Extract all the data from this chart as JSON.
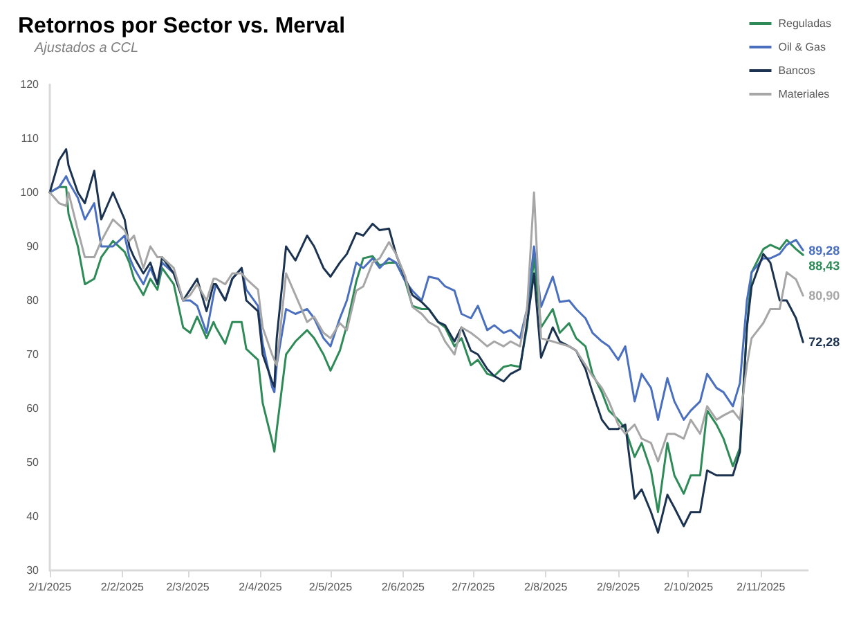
{
  "chart_data": {
    "type": "line",
    "title": "Retornos por Sector vs. Merval",
    "subtitle": "Ajustados a CCL",
    "x": [
      "2025-01-02",
      "2025-01-06",
      "2025-01-09",
      "2025-01-10",
      "2025-01-14",
      "2025-01-17",
      "2025-01-21",
      "2025-01-24",
      "2025-01-29",
      "2025-02-03",
      "2025-02-05",
      "2025-02-07",
      "2025-02-11",
      "2025-02-14",
      "2025-02-17",
      "2025-02-19",
      "2025-02-24",
      "2025-02-28",
      "2025-03-03",
      "2025-03-06",
      "2025-03-10",
      "2025-03-13",
      "2025-03-14",
      "2025-03-18",
      "2025-03-21",
      "2025-03-25",
      "2025-03-27",
      "2025-04-01",
      "2025-04-03",
      "2025-04-07",
      "2025-04-08",
      "2025-04-09",
      "2025-04-13",
      "2025-04-17",
      "2025-04-22",
      "2025-04-25",
      "2025-04-29",
      "2025-05-02",
      "2025-05-06",
      "2025-05-09",
      "2025-05-13",
      "2025-05-16",
      "2025-05-20",
      "2025-05-23",
      "2025-05-27",
      "2025-05-30",
      "2025-06-03",
      "2025-06-06",
      "2025-06-10",
      "2025-06-13",
      "2025-06-17",
      "2025-06-20",
      "2025-06-24",
      "2025-06-27",
      "2025-07-01",
      "2025-07-04",
      "2025-07-08",
      "2025-07-11",
      "2025-07-15",
      "2025-07-18",
      "2025-07-22",
      "2025-07-25",
      "2025-07-28",
      "2025-07-31",
      "2025-08-05",
      "2025-08-08",
      "2025-08-12",
      "2025-08-15",
      "2025-08-19",
      "2025-08-22",
      "2025-08-26",
      "2025-08-29",
      "2025-09-02",
      "2025-09-05",
      "2025-09-09",
      "2025-09-12",
      "2025-09-16",
      "2025-09-19",
      "2025-09-23",
      "2025-09-26",
      "2025-09-30",
      "2025-10-03",
      "2025-10-07",
      "2025-10-10",
      "2025-10-14",
      "2025-10-17",
      "2025-10-21",
      "2025-10-24",
      "2025-10-27",
      "2025-10-29",
      "2025-11-03",
      "2025-11-06",
      "2025-11-10",
      "2025-11-13",
      "2025-11-17",
      "2025-11-20"
    ],
    "series": [
      {
        "name": "Reguladas",
        "color": "#2e8b57",
        "values": [
          100,
          101,
          101,
          96,
          90,
          83,
          84,
          88,
          91,
          89,
          87,
          84,
          81,
          84,
          82,
          86,
          83,
          75,
          74,
          77,
          73,
          76,
          75,
          72,
          76,
          76,
          71,
          69,
          61,
          54,
          52,
          56,
          70,
          72.4,
          74.5,
          73,
          70,
          67,
          70.7,
          75.4,
          83.5,
          87.8,
          88.2,
          86.5,
          87,
          87,
          83.5,
          79,
          78.4,
          78.4,
          76,
          75,
          71.5,
          73,
          68,
          69,
          66.4,
          66,
          67.7,
          68,
          67.7,
          75,
          88,
          75,
          78.4,
          74,
          75.8,
          73,
          71.5,
          66.4,
          63,
          59.6,
          57.9,
          56.2,
          51,
          53.6,
          48.5,
          40.8,
          53.6,
          47.6,
          44.2,
          47.6,
          47.6,
          59.6,
          57,
          54.4,
          49.3,
          52.7,
          75,
          85.2,
          89.5,
          90.3,
          89.5,
          91.2,
          89.5,
          88.43
        ],
        "value_labels": [
          null,
          null,
          null,
          null,
          null,
          null,
          null,
          null,
          null,
          null,
          null,
          null,
          null,
          null,
          null,
          null,
          null,
          null,
          null,
          null,
          null,
          null,
          null,
          null,
          null,
          null,
          null,
          null,
          null,
          null,
          null,
          null,
          null,
          null,
          null,
          null,
          null,
          null,
          null,
          null,
          null,
          null,
          null,
          null,
          null,
          null,
          null,
          null,
          null,
          null,
          null,
          null,
          null,
          null,
          null,
          null,
          null,
          null,
          null,
          null,
          null,
          null,
          null,
          null,
          null,
          null,
          null,
          null,
          null,
          null,
          null,
          null,
          null,
          null,
          null,
          null,
          null,
          null,
          null,
          null,
          null,
          null,
          null,
          null,
          null,
          null,
          null,
          null,
          null,
          null,
          null,
          null,
          null,
          null,
          null,
          "88,43"
        ]
      },
      {
        "name": "Oil & Gas",
        "color": "#4a6fbf",
        "values": [
          100,
          101,
          103,
          102,
          99,
          95,
          98,
          90,
          90,
          92,
          88,
          86,
          83,
          86,
          83,
          87,
          85,
          80,
          80,
          79,
          74,
          81,
          83,
          80,
          84,
          86,
          82,
          79,
          72,
          64,
          63,
          68,
          78.4,
          77.5,
          78.4,
          76.7,
          73,
          71.5,
          76.7,
          80,
          87,
          86,
          87.8,
          86,
          87.8,
          87,
          83.5,
          81.8,
          80,
          84.4,
          84,
          82.6,
          81.8,
          77.5,
          76.7,
          79,
          74.5,
          75.4,
          74,
          74.5,
          73,
          78.4,
          90,
          78.8,
          84.4,
          79.7,
          80,
          78.4,
          76.7,
          74,
          72.4,
          71.5,
          69,
          71.5,
          61.3,
          66.4,
          63.8,
          57.9,
          65.6,
          61.3,
          57.9,
          59.6,
          61.3,
          66.4,
          63.8,
          63,
          60.4,
          64.7,
          80,
          85.2,
          87.8,
          87.8,
          88.6,
          90.3,
          91.2,
          89.28
        ],
        "value_labels": [
          null,
          null,
          null,
          null,
          null,
          null,
          null,
          null,
          null,
          null,
          null,
          null,
          null,
          null,
          null,
          null,
          null,
          null,
          null,
          null,
          null,
          null,
          null,
          null,
          null,
          null,
          null,
          null,
          null,
          null,
          null,
          null,
          null,
          null,
          null,
          null,
          null,
          null,
          null,
          null,
          null,
          null,
          null,
          null,
          null,
          null,
          null,
          null,
          null,
          null,
          null,
          null,
          null,
          null,
          null,
          null,
          null,
          null,
          null,
          null,
          null,
          null,
          null,
          null,
          null,
          null,
          null,
          null,
          null,
          null,
          null,
          null,
          null,
          null,
          null,
          null,
          null,
          null,
          null,
          null,
          null,
          null,
          null,
          null,
          null,
          null,
          null,
          null,
          null,
          null,
          null,
          null,
          null,
          null,
          null,
          "89,28"
        ]
      },
      {
        "name": "Bancos",
        "color": "#1b3350",
        "values": [
          100,
          106,
          108,
          105,
          100,
          98,
          104,
          95,
          100,
          95,
          90,
          88,
          85,
          87,
          83,
          88,
          85,
          80,
          82,
          84,
          78,
          83,
          83,
          80,
          84,
          86,
          80,
          78,
          70,
          65,
          64,
          73,
          90,
          87.4,
          92,
          90,
          86,
          84.4,
          87,
          88.6,
          92.5,
          92,
          94.2,
          93,
          93.3,
          88.6,
          84,
          81,
          79.7,
          78.4,
          76,
          75.4,
          72.4,
          75,
          70.7,
          70,
          67.3,
          66,
          65,
          66.4,
          67.3,
          75.8,
          85,
          69.4,
          75,
          72.4,
          71.5,
          70.7,
          67.3,
          63,
          57.9,
          56.2,
          56.2,
          57,
          43.3,
          45,
          40.8,
          37,
          44,
          41.6,
          38.2,
          40.8,
          40.8,
          48.5,
          47.6,
          47.6,
          47.6,
          51.9,
          75,
          82.6,
          88.6,
          87,
          80,
          80,
          76.7,
          72.28
        ],
        "value_labels": [
          null,
          null,
          null,
          null,
          null,
          null,
          null,
          null,
          null,
          null,
          null,
          null,
          null,
          null,
          null,
          null,
          null,
          null,
          null,
          null,
          null,
          null,
          null,
          null,
          null,
          null,
          null,
          null,
          null,
          null,
          null,
          null,
          null,
          null,
          null,
          null,
          null,
          null,
          null,
          null,
          null,
          null,
          null,
          null,
          null,
          null,
          null,
          null,
          null,
          null,
          null,
          null,
          null,
          null,
          null,
          null,
          null,
          null,
          null,
          null,
          null,
          null,
          null,
          null,
          null,
          null,
          null,
          null,
          null,
          null,
          null,
          null,
          null,
          null,
          null,
          null,
          null,
          null,
          null,
          null,
          null,
          null,
          null,
          null,
          null,
          null,
          null,
          null,
          null,
          null,
          null,
          null,
          null,
          null,
          null,
          "72,28"
        ]
      },
      {
        "name": "Materiales",
        "color": "#a6a6a6",
        "values": [
          100,
          98,
          97.5,
          100,
          93,
          88,
          88,
          91,
          95,
          93,
          91,
          92,
          86,
          90,
          88,
          88,
          86,
          80,
          81,
          83,
          80,
          84,
          84,
          83,
          85,
          85,
          84,
          82,
          75,
          70,
          69,
          68,
          85,
          81,
          76,
          77,
          74,
          73,
          75.8,
          74.5,
          81.8,
          82.6,
          87,
          87.8,
          90.8,
          88.6,
          84.4,
          78.8,
          77.5,
          76,
          75,
          72.4,
          70,
          75,
          74,
          73,
          71.5,
          72.4,
          71.5,
          72.4,
          71.5,
          78.4,
          100,
          73,
          72.4,
          72,
          71.5,
          70.7,
          68,
          66,
          63.8,
          61.3,
          57,
          55.3,
          57,
          54.4,
          53.6,
          50.2,
          55.3,
          55.3,
          54.4,
          57.9,
          55.3,
          60.4,
          57.9,
          58.7,
          59.6,
          57.9,
          68,
          73,
          75.8,
          78.4,
          78.4,
          85.2,
          83.9,
          80.9
        ],
        "value_labels": [
          null,
          null,
          null,
          null,
          null,
          null,
          null,
          null,
          null,
          null,
          null,
          null,
          null,
          null,
          null,
          null,
          null,
          null,
          null,
          null,
          null,
          null,
          null,
          null,
          null,
          null,
          null,
          null,
          null,
          null,
          null,
          null,
          null,
          null,
          null,
          null,
          null,
          null,
          null,
          null,
          null,
          null,
          null,
          null,
          null,
          null,
          null,
          null,
          null,
          null,
          null,
          null,
          null,
          null,
          null,
          null,
          null,
          null,
          null,
          null,
          null,
          null,
          null,
          null,
          null,
          null,
          null,
          null,
          null,
          null,
          null,
          null,
          null,
          null,
          null,
          null,
          null,
          null,
          null,
          null,
          null,
          null,
          null,
          null,
          null,
          null,
          null,
          null,
          null,
          null,
          null,
          null,
          null,
          null,
          null,
          "80,90"
        ]
      }
    ],
    "xlim": [
      "2025-01-02",
      "2025-11-22"
    ],
    "xticks": [
      {
        "value": "2025-01-02",
        "label": "2/1/2025"
      },
      {
        "value": "2025-02-02",
        "label": "2/2/2025"
      },
      {
        "value": "2025-03-02",
        "label": "2/3/2025"
      },
      {
        "value": "2025-04-02",
        "label": "2/4/2025"
      },
      {
        "value": "2025-05-02",
        "label": "2/5/2025"
      },
      {
        "value": "2025-06-02",
        "label": "2/6/2025"
      },
      {
        "value": "2025-07-02",
        "label": "2/7/2025"
      },
      {
        "value": "2025-08-02",
        "label": "2/8/2025"
      },
      {
        "value": "2025-09-02",
        "label": "2/9/2025"
      },
      {
        "value": "2025-10-02",
        "label": "2/10/2025"
      },
      {
        "value": "2025-11-02",
        "label": "2/11/2025"
      }
    ],
    "ylim": [
      30,
      120
    ],
    "yticks": [
      30,
      40,
      50,
      60,
      70,
      80,
      90,
      100,
      110,
      120
    ],
    "grid": false,
    "legend": "top right",
    "marker": "none",
    "line_style": "solid"
  }
}
